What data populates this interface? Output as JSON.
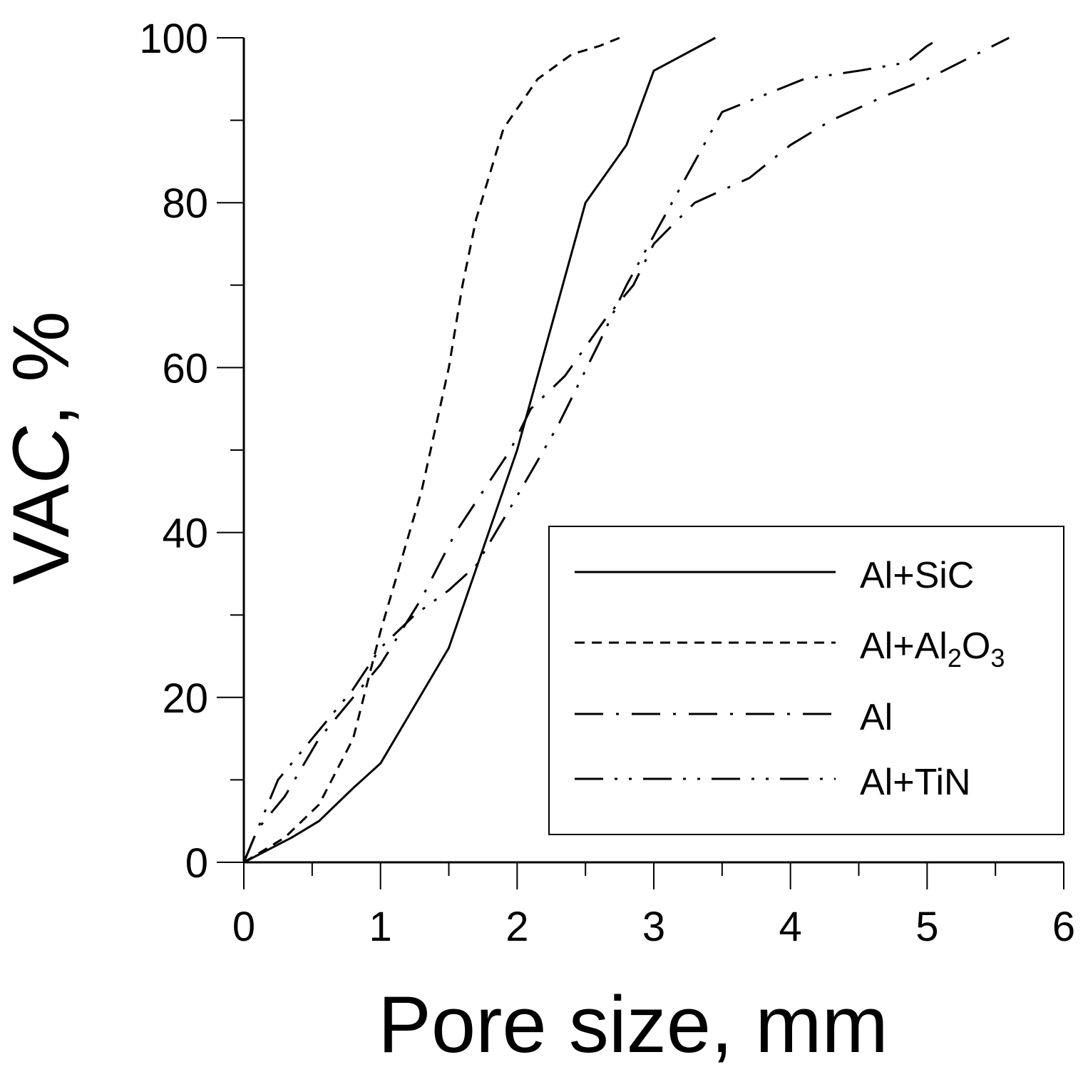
{
  "chart_data": {
    "type": "line",
    "xlabel": "Pore size, mm",
    "ylabel": "VAC, %",
    "ylabel_parts": {
      "main": "VA",
      "italic": "C",
      "rest": ", %"
    },
    "xlim": [
      0,
      6
    ],
    "ylim": [
      0,
      100
    ],
    "x_major_ticks": [
      0,
      1,
      2,
      3,
      4,
      5,
      6
    ],
    "x_minor_ticks": [
      0.5,
      1.5,
      2.5,
      3.5,
      4.5,
      5.5
    ],
    "y_major_ticks": [
      0,
      20,
      40,
      60,
      80,
      100
    ],
    "y_minor_ticks": [
      10,
      30,
      50,
      70,
      90
    ],
    "x_tick_labels": [
      "0",
      "1",
      "2",
      "3",
      "4",
      "5",
      "6"
    ],
    "y_tick_labels": [
      "0",
      "20",
      "40",
      "60",
      "80",
      "100"
    ],
    "grid": false,
    "legend_position": "bottom-right",
    "series": [
      {
        "name": "Al+SiC",
        "legend_main": "Al+SiC",
        "dash": "solid",
        "points": [
          [
            0,
            0
          ],
          [
            0.35,
            3
          ],
          [
            0.55,
            5
          ],
          [
            0.8,
            9
          ],
          [
            1.0,
            12
          ],
          [
            1.5,
            26
          ],
          [
            2.0,
            50
          ],
          [
            2.25,
            65
          ],
          [
            2.5,
            80
          ],
          [
            2.8,
            87
          ],
          [
            3.0,
            96
          ],
          [
            3.45,
            100
          ]
        ]
      },
      {
        "name": "Al+Al2O3",
        "legend_main": "Al+Al",
        "legend_sub1": "2",
        "legend_mid": "O",
        "legend_sub2": "3",
        "dash": "dashed",
        "points": [
          [
            0,
            0
          ],
          [
            0.3,
            3
          ],
          [
            0.55,
            7
          ],
          [
            0.8,
            15
          ],
          [
            1.0,
            28
          ],
          [
            1.3,
            45
          ],
          [
            1.5,
            60
          ],
          [
            1.6,
            70
          ],
          [
            1.7,
            78
          ],
          [
            1.9,
            89
          ],
          [
            2.15,
            95
          ],
          [
            2.4,
            98
          ],
          [
            2.6,
            99
          ],
          [
            2.75,
            100
          ]
        ]
      },
      {
        "name": "Al",
        "legend_main": "Al",
        "dash": "dash-dot",
        "points": [
          [
            0,
            0
          ],
          [
            0.1,
            4
          ],
          [
            0.3,
            8
          ],
          [
            0.55,
            15
          ],
          [
            0.8,
            20
          ],
          [
            1.0,
            24
          ],
          [
            1.3,
            32
          ],
          [
            1.55,
            40
          ],
          [
            1.75,
            45
          ],
          [
            1.95,
            50
          ],
          [
            2.1,
            55
          ],
          [
            2.35,
            59
          ],
          [
            2.65,
            66
          ],
          [
            2.85,
            70
          ],
          [
            3.0,
            75
          ],
          [
            3.3,
            80
          ],
          [
            3.7,
            83
          ],
          [
            4.0,
            87
          ],
          [
            4.3,
            90
          ],
          [
            4.7,
            93
          ],
          [
            5.0,
            95
          ],
          [
            5.6,
            100
          ]
        ]
      },
      {
        "name": "Al+TiN",
        "legend_main": "Al+TiN",
        "dash": "dash-dot-dot",
        "points": [
          [
            0,
            0
          ],
          [
            0.25,
            10
          ],
          [
            0.5,
            15
          ],
          [
            0.8,
            21
          ],
          [
            1.0,
            26
          ],
          [
            1.25,
            30
          ],
          [
            1.5,
            33
          ],
          [
            1.7,
            36
          ],
          [
            1.95,
            43
          ],
          [
            2.3,
            53
          ],
          [
            2.6,
            63
          ],
          [
            2.8,
            70
          ],
          [
            3.2,
            82
          ],
          [
            3.5,
            91
          ],
          [
            3.8,
            93
          ],
          [
            4.1,
            95
          ],
          [
            4.5,
            96
          ],
          [
            4.85,
            97
          ],
          [
            5.0,
            99
          ],
          [
            5.1,
            100
          ]
        ]
      }
    ]
  }
}
